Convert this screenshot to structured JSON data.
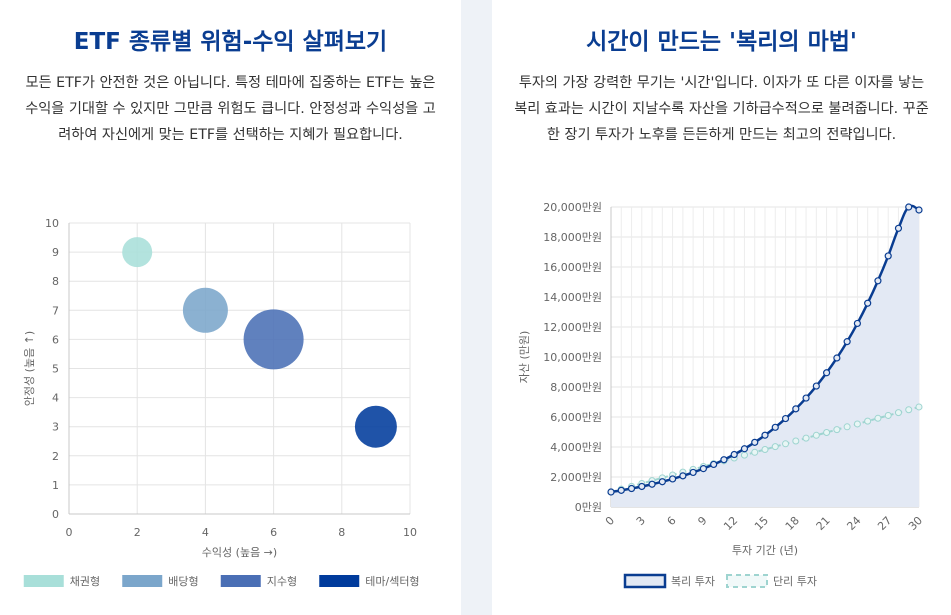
{
  "left": {
    "title": "ETF 종류별 위험-수익 살펴보기",
    "description": "모든 ETF가 안전한 것은 아닙니다. 특정 테마에 집중하는 ETF는 높은 수익을 기대할 수 있지만 그만큼 위험도 큽니다. 안정성과 수익성을 고려하여 자신에게 맞는 ETF를 선택하는 지혜가 필요합니다."
  },
  "right": {
    "title": "시간이 만드는 '복리의 마법'",
    "description": "투자의 가장 강력한 무기는 '시간'입니다. 이자가 또 다른 이자를 낳는 복리 효과는 시간이 지날수록 자산을 기하급수적으로 불려줍니다. 꾸준한 장기 투자가 노후를 든든하게 만드는 최고의 전략입니다."
  },
  "chart_data": [
    {
      "type": "scatter",
      "xlabel": "수익성 (높음 →)",
      "ylabel": "안정성 (높음 ↑)",
      "xlim": [
        0,
        10
      ],
      "ylim": [
        0,
        10
      ],
      "x_ticks": [
        "0",
        "2",
        "4",
        "6",
        "8",
        "10"
      ],
      "y_ticks": [
        "0",
        "1",
        "2",
        "3",
        "4",
        "5",
        "6",
        "7",
        "8",
        "9",
        "10"
      ],
      "grid": true,
      "legend_position": "bottom",
      "series": [
        {
          "name": "채권형",
          "x": 2,
          "y": 9,
          "bubble_size": 10,
          "color": "#a8dfd9"
        },
        {
          "name": "배당형",
          "x": 4,
          "y": 7,
          "bubble_size": 15,
          "color": "#7ba6cb"
        },
        {
          "name": "지수형",
          "x": 6,
          "y": 6,
          "bubble_size": 20,
          "color": "#4a6fb5"
        },
        {
          "name": "테마/섹터형",
          "x": 9,
          "y": 3,
          "bubble_size": 14,
          "color": "#003b9c"
        }
      ]
    },
    {
      "type": "area",
      "xlabel": "투자 기간 (년)",
      "ylabel": "자산 (만원)",
      "xlim": [
        0,
        30
      ],
      "ylim": [
        0,
        20000
      ],
      "x_ticks": [
        "0",
        "3",
        "6",
        "9",
        "12",
        "15",
        "18",
        "21",
        "24",
        "27",
        "30"
      ],
      "y_ticks": [
        "0만원",
        "2,000만원",
        "4,000만원",
        "6,000만원",
        "8,000만원",
        "10,000만원",
        "12,000만원",
        "14,000만원",
        "16,000만원",
        "18,000만원",
        "20,000만원"
      ],
      "grid": true,
      "legend_position": "bottom",
      "x": [
        0,
        1,
        2,
        3,
        4,
        5,
        6,
        7,
        8,
        9,
        10,
        11,
        12,
        13,
        14,
        15,
        16,
        17,
        18,
        19,
        20,
        21,
        22,
        23,
        24,
        25,
        26,
        27,
        28,
        29,
        30
      ],
      "series": [
        {
          "name": "복리 투자",
          "color": "#0a3d91",
          "fill": "#e3e9f4",
          "values": [
            1000,
            1110,
            1232,
            1368,
            1518,
            1685,
            1870,
            2076,
            2305,
            2558,
            2839,
            3152,
            3498,
            3883,
            4310,
            4785,
            5311,
            5895,
            6544,
            7263,
            8062,
            8949,
            9934,
            11026,
            12239,
            13585,
            15080,
            16739,
            18580,
            20624,
            19800
          ]
        },
        {
          "name": "단리 투자",
          "color": "#9ed4d0",
          "values": [
            1000,
            1189,
            1378,
            1567,
            1756,
            1945,
            2134,
            2323,
            2512,
            2701,
            2890,
            3079,
            3268,
            3457,
            3646,
            3835,
            4024,
            4213,
            4402,
            4591,
            4780,
            4969,
            5158,
            5347,
            5536,
            5725,
            5914,
            6103,
            6292,
            6481,
            6670
          ]
        }
      ]
    }
  ]
}
